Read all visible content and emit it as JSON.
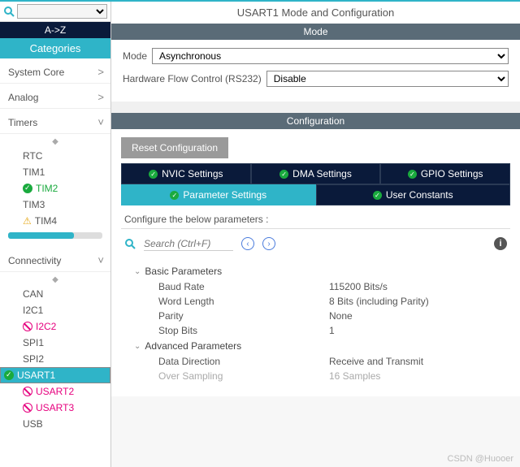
{
  "title": "USART1 Mode and Configuration",
  "watermark": "CSDN @Huooer",
  "sidebar": {
    "sort_az": "A->Z",
    "sort_cat": "Categories",
    "cats": [
      {
        "label": "System Core",
        "chev": ">"
      },
      {
        "label": "Analog",
        "chev": ">"
      },
      {
        "label": "Timers",
        "chev": "˅",
        "items": [
          {
            "label": "RTC"
          },
          {
            "label": "TIM1"
          },
          {
            "label": "TIM2",
            "status": "ok"
          },
          {
            "label": "TIM3"
          },
          {
            "label": "TIM4",
            "status": "warn"
          }
        ]
      },
      {
        "label": "Connectivity",
        "chev": "˅",
        "items": [
          {
            "label": "CAN"
          },
          {
            "label": "I2C1"
          },
          {
            "label": "I2C2",
            "status": "dis"
          },
          {
            "label": "SPI1"
          },
          {
            "label": "SPI2"
          },
          {
            "label": "USART1",
            "status": "ok",
            "selected": true
          },
          {
            "label": "USART2",
            "status": "dis"
          },
          {
            "label": "USART3",
            "status": "dis"
          },
          {
            "label": "USB"
          }
        ]
      }
    ]
  },
  "mode": {
    "header": "Mode",
    "rows": [
      {
        "label": "Mode",
        "value": "Asynchronous"
      },
      {
        "label": "Hardware Flow Control (RS232)",
        "value": "Disable"
      }
    ]
  },
  "config": {
    "header": "Configuration",
    "reset": "Reset Configuration",
    "tabs_r1": [
      "NVIC Settings",
      "DMA Settings",
      "GPIO Settings"
    ],
    "tabs_r2": [
      "Parameter Settings",
      "User Constants"
    ],
    "active_tab": "Parameter Settings",
    "hint": "Configure the below parameters :",
    "search_ph": "Search (Ctrl+F)",
    "groups": [
      {
        "name": "Basic Parameters",
        "rows": [
          {
            "k": "Baud Rate",
            "v": "115200 Bits/s"
          },
          {
            "k": "Word Length",
            "v": "8 Bits (including Parity)"
          },
          {
            "k": "Parity",
            "v": "None"
          },
          {
            "k": "Stop Bits",
            "v": "1"
          }
        ]
      },
      {
        "name": "Advanced Parameters",
        "rows": [
          {
            "k": "Data Direction",
            "v": "Receive and Transmit"
          },
          {
            "k": "Over Sampling",
            "v": "16 Samples",
            "dim": true
          }
        ]
      }
    ]
  }
}
